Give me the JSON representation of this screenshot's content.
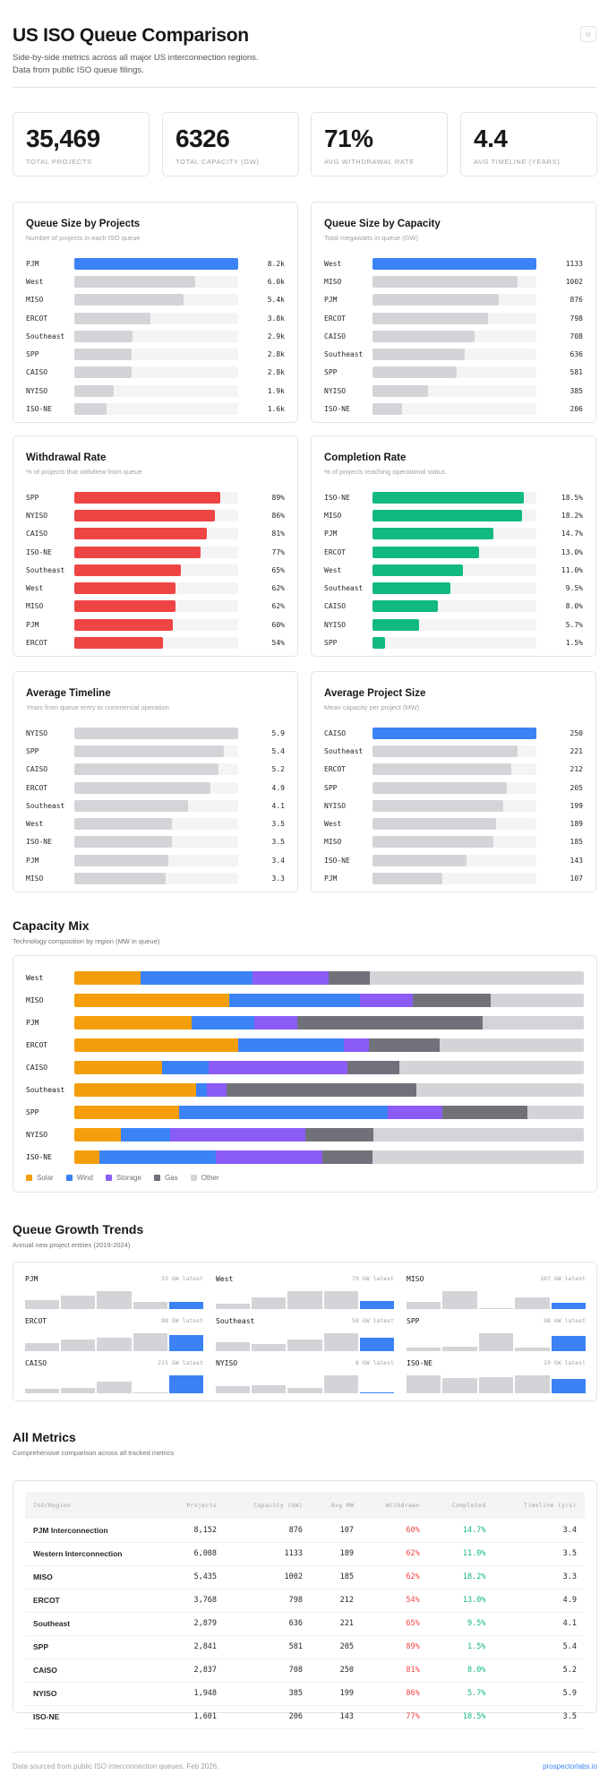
{
  "header": {
    "title": "US ISO Queue Comparison",
    "subtitle_line1": "Side-by-side metrics across all major US interconnection regions.",
    "subtitle_line2": "Data from public ISO queue filings.",
    "theme_toggle_icon": "sun-icon"
  },
  "stats": [
    {
      "value": "35,469",
      "label": "Total Projects"
    },
    {
      "value": "6326",
      "label": "Total Capacity (GW)"
    },
    {
      "value": "71%",
      "label": "Avg Withdrawal Rate"
    },
    {
      "value": "4.4",
      "label": "Avg Timeline (Years)"
    }
  ],
  "colors": {
    "blue": "#3b82f6",
    "gray": "#d4d4d8",
    "red": "#ef4444",
    "green": "#10b981",
    "track": "#f4f4f5"
  },
  "chart_data": [
    {
      "type": "bar",
      "title": "Queue Size by Projects",
      "subtitle": "Number of projects in each ISO queue",
      "categories": [
        "PJM",
        "West",
        "MISO",
        "ERCOT",
        "Southeast",
        "SPP",
        "CAISO",
        "NYISO",
        "ISO-NE"
      ],
      "values": [
        8152,
        6008,
        5435,
        3768,
        2879,
        2841,
        2837,
        1948,
        1601
      ],
      "value_labels": [
        "8.2k",
        "6.0k",
        "5.4k",
        "3.8k",
        "2.9k",
        "2.8k",
        "2.8k",
        "1.9k",
        "1.6k"
      ],
      "max": 8152,
      "colors": [
        "#3b82f6",
        "#d4d4d8",
        "#d4d4d8",
        "#d4d4d8",
        "#d4d4d8",
        "#d4d4d8",
        "#d4d4d8",
        "#d4d4d8",
        "#d4d4d8"
      ]
    },
    {
      "type": "bar",
      "title": "Queue Size by Capacity",
      "subtitle": "Total megawatts in queue (GW)",
      "categories": [
        "West",
        "MISO",
        "PJM",
        "ERCOT",
        "CAISO",
        "Southeast",
        "SPP",
        "NYISO",
        "ISO-NE"
      ],
      "values": [
        1133,
        1002,
        876,
        798,
        708,
        636,
        581,
        385,
        206
      ],
      "value_labels": [
        "1133",
        "1002",
        "876",
        "798",
        "708",
        "636",
        "581",
        "385",
        "206"
      ],
      "max": 1133,
      "colors": [
        "#3b82f6",
        "#d4d4d8",
        "#d4d4d8",
        "#d4d4d8",
        "#d4d4d8",
        "#d4d4d8",
        "#d4d4d8",
        "#d4d4d8",
        "#d4d4d8"
      ]
    },
    {
      "type": "bar",
      "title": "Withdrawal Rate",
      "subtitle": "% of projects that withdrew from queue",
      "categories": [
        "SPP",
        "NYISO",
        "CAISO",
        "ISO-NE",
        "Southeast",
        "West",
        "MISO",
        "PJM",
        "ERCOT"
      ],
      "values": [
        89,
        86,
        81,
        77,
        65,
        62,
        62,
        60,
        54
      ],
      "value_labels": [
        "89%",
        "86%",
        "81%",
        "77%",
        "65%",
        "62%",
        "62%",
        "60%",
        "54%"
      ],
      "max": 100,
      "colors": [
        "#ef4444"
      ]
    },
    {
      "type": "bar",
      "title": "Completion Rate",
      "subtitle": "% of projects reaching operational status",
      "categories": [
        "ISO-NE",
        "MISO",
        "PJM",
        "ERCOT",
        "West",
        "Southeast",
        "CAISO",
        "NYISO",
        "SPP"
      ],
      "values": [
        18.5,
        18.2,
        14.7,
        13.0,
        11.0,
        9.5,
        8.0,
        5.7,
        1.5
      ],
      "value_labels": [
        "18.5%",
        "18.2%",
        "14.7%",
        "13.0%",
        "11.0%",
        "9.5%",
        "8.0%",
        "5.7%",
        "1.5%"
      ],
      "max": 20,
      "colors": [
        "#10b981"
      ]
    },
    {
      "type": "bar",
      "title": "Average Timeline",
      "subtitle": "Years from queue entry to commercial operation",
      "categories": [
        "NYISO",
        "SPP",
        "CAISO",
        "ERCOT",
        "Southeast",
        "West",
        "ISO-NE",
        "PJM",
        "MISO"
      ],
      "values": [
        5.9,
        5.4,
        5.2,
        4.9,
        4.1,
        3.5,
        3.5,
        3.4,
        3.3
      ],
      "value_labels": [
        "5.9",
        "5.4",
        "5.2",
        "4.9",
        "4.1",
        "3.5",
        "3.5",
        "3.4",
        "3.3"
      ],
      "max": 5.9,
      "colors": [
        "#d4d4d8"
      ]
    },
    {
      "type": "bar",
      "title": "Average Project Size",
      "subtitle": "Mean capacity per project (MW)",
      "categories": [
        "CAISO",
        "Southeast",
        "ERCOT",
        "SPP",
        "NYISO",
        "West",
        "MISO",
        "ISO-NE",
        "PJM"
      ],
      "values": [
        250,
        221,
        212,
        205,
        199,
        189,
        185,
        143,
        107
      ],
      "value_labels": [
        "250",
        "221",
        "212",
        "205",
        "199",
        "189",
        "185",
        "143",
        "107"
      ],
      "max": 250,
      "colors": [
        "#3b82f6",
        "#d4d4d8",
        "#d4d4d8",
        "#d4d4d8",
        "#d4d4d8",
        "#d4d4d8",
        "#d4d4d8",
        "#d4d4d8",
        "#d4d4d8"
      ]
    }
  ],
  "capacity_mix": {
    "title": "Capacity Mix",
    "subtitle": "Technology composition by region (MW in queue)",
    "type": "stacked-bar",
    "unit": "percent",
    "series": [
      {
        "name": "Solar",
        "color": "#f59e0b"
      },
      {
        "name": "Wind",
        "color": "#3b82f6"
      },
      {
        "name": "Storage",
        "color": "#8b5cf6"
      },
      {
        "name": "Gas",
        "color": "#71717a"
      },
      {
        "name": "Other",
        "color": "#d4d4d8"
      }
    ],
    "rows": [
      {
        "region": "West",
        "values": [
          13,
          22,
          15,
          8,
          42
        ]
      },
      {
        "region": "MISO",
        "values": [
          30.5,
          25.6,
          10.3,
          15.3,
          18.3
        ]
      },
      {
        "region": "PJM",
        "values": [
          23,
          12.3,
          8.5,
          36.3,
          19.9
        ]
      },
      {
        "region": "ERCOT",
        "values": [
          32.2,
          20.7,
          5,
          13.8,
          28.3
        ]
      },
      {
        "region": "CAISO",
        "values": [
          17.3,
          9,
          27.4,
          10.1,
          36.2
        ]
      },
      {
        "region": "Southeast",
        "values": [
          23.9,
          2.1,
          3.9,
          37.3,
          32.8
        ]
      },
      {
        "region": "SPP",
        "values": [
          20.6,
          40.9,
          10.7,
          16.8,
          11
        ]
      },
      {
        "region": "NYISO",
        "values": [
          9.1,
          9.8,
          26.4,
          13.5,
          41.2
        ]
      },
      {
        "region": "ISO-NE",
        "values": [
          5,
          22.8,
          20.9,
          9.8,
          41.5
        ]
      }
    ]
  },
  "trends": {
    "title": "Queue Growth Trends",
    "subtitle": "Annual new project entries (2019-2024)",
    "items": [
      {
        "region": "PJM",
        "latest": "33 GW latest",
        "values": [
          45,
          66,
          87,
          35,
          33
        ]
      },
      {
        "region": "West",
        "latest": "79 GW latest",
        "values": [
          51,
          111,
          167,
          167,
          79
        ]
      },
      {
        "region": "MISO",
        "latest": "107 GW latest",
        "values": [
          112,
          289,
          11,
          193,
          107
        ]
      },
      {
        "region": "ERCOT",
        "latest": "98 GW latest",
        "values": [
          47,
          69,
          80,
          106,
          98
        ]
      },
      {
        "region": "Southeast",
        "latest": "58 GW latest",
        "values": [
          41,
          33,
          51,
          78,
          58
        ]
      },
      {
        "region": "SPP",
        "latest": "98 GW latest",
        "values": [
          25,
          29,
          113,
          25,
          98
        ]
      },
      {
        "region": "CAISO",
        "latest": "215 GW latest",
        "values": [
          53,
          61,
          142,
          12,
          215
        ]
      },
      {
        "region": "NYISO",
        "latest": "8 GW latest",
        "values": [
          53,
          61,
          45,
          141,
          8
        ]
      },
      {
        "region": "ISO-NE",
        "latest": "19 GW latest",
        "values": [
          24,
          20,
          22,
          24,
          19
        ]
      }
    ]
  },
  "metrics": {
    "title": "All Metrics",
    "subtitle": "Comprehensive comparison across all tracked metrics",
    "columns": [
      "ISO/Region",
      "Projects",
      "Capacity (GW)",
      "Avg MW",
      "Withdrawn",
      "Completed",
      "Timeline (yrs)"
    ],
    "rows": [
      [
        "PJM Interconnection",
        "8,152",
        "876",
        "107",
        "60%",
        "14.7%",
        "3.4"
      ],
      [
        "Western Interconnection",
        "6,008",
        "1133",
        "189",
        "62%",
        "11.0%",
        "3.5"
      ],
      [
        "MISO",
        "5,435",
        "1002",
        "185",
        "62%",
        "18.2%",
        "3.3"
      ],
      [
        "ERCOT",
        "3,768",
        "798",
        "212",
        "54%",
        "13.0%",
        "4.9"
      ],
      [
        "Southeast",
        "2,879",
        "636",
        "221",
        "65%",
        "9.5%",
        "4.1"
      ],
      [
        "SPP",
        "2,841",
        "581",
        "205",
        "89%",
        "1.5%",
        "5.4"
      ],
      [
        "CAISO",
        "2,837",
        "708",
        "250",
        "81%",
        "8.0%",
        "5.2"
      ],
      [
        "NYISO",
        "1,948",
        "385",
        "199",
        "86%",
        "5.7%",
        "5.9"
      ],
      [
        "ISO-NE",
        "1,601",
        "206",
        "143",
        "77%",
        "18.5%",
        "3.5"
      ]
    ]
  },
  "footer": {
    "note": "Data sourced from public ISO interconnection queues. Feb 2026.",
    "link": "prospectorlabs.io"
  }
}
